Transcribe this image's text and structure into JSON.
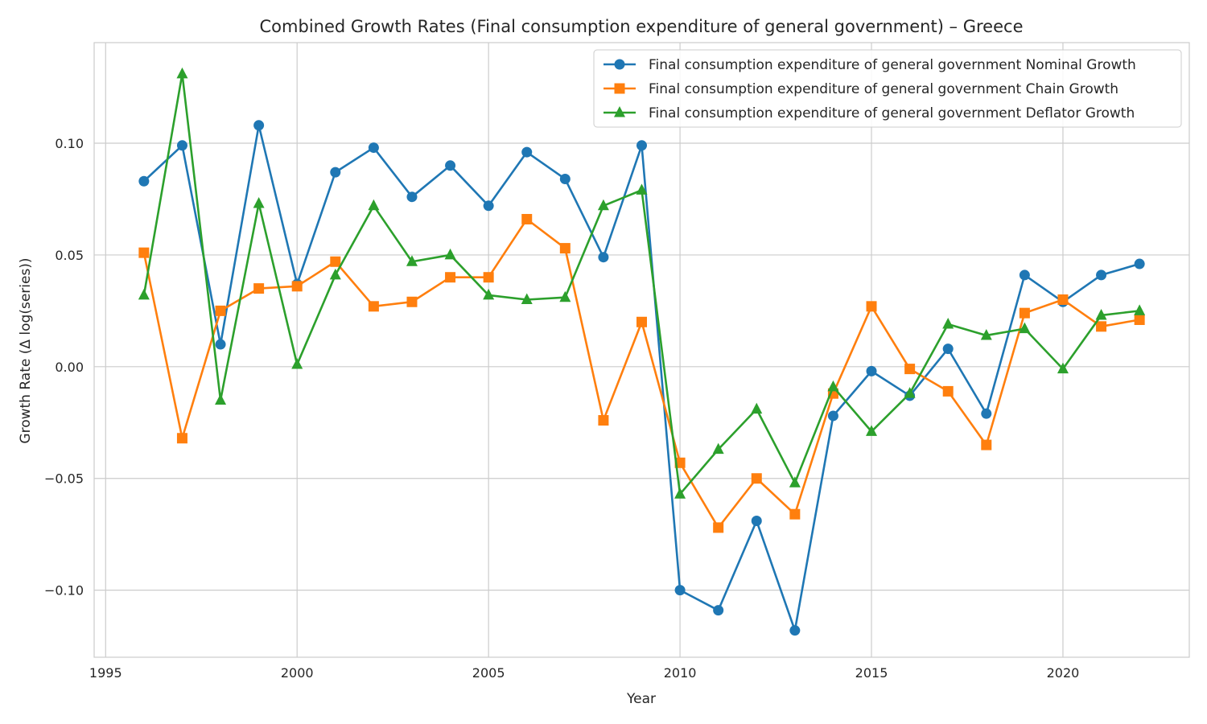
{
  "chart_data": {
    "type": "line",
    "title": "Combined Growth Rates (Final consumption expenditure of general government) – Greece",
    "xlabel": "Year",
    "ylabel": "Growth Rate (Δ log(series))",
    "xlim": [
      1994.7,
      2023.3
    ],
    "ylim": [
      -0.13,
      0.145
    ],
    "xticks": [
      1995,
      2000,
      2005,
      2010,
      2015,
      2020
    ],
    "yticks": [
      -0.1,
      -0.05,
      0.0,
      0.05,
      0.1
    ],
    "ytick_labels": [
      "−0.10",
      "−0.05",
      "0.00",
      "0.05",
      "0.10"
    ],
    "grid": true,
    "legend_position": "top-right",
    "x": [
      1996,
      1997,
      1998,
      1999,
      2000,
      2001,
      2002,
      2003,
      2004,
      2005,
      2006,
      2007,
      2008,
      2009,
      2010,
      2011,
      2012,
      2013,
      2014,
      2015,
      2016,
      2017,
      2018,
      2019,
      2020,
      2021,
      2022
    ],
    "series": [
      {
        "name": "Final consumption expenditure of general government Nominal Growth",
        "color": "#1f77b4",
        "marker": "circle",
        "values": [
          0.083,
          0.099,
          0.01,
          0.108,
          0.037,
          0.087,
          0.098,
          0.076,
          0.09,
          0.072,
          0.096,
          0.084,
          0.049,
          0.099,
          -0.1,
          -0.109,
          -0.069,
          -0.118,
          -0.022,
          -0.002,
          -0.013,
          0.008,
          -0.021,
          0.041,
          0.029,
          0.041,
          0.046
        ]
      },
      {
        "name": "Final consumption expenditure of general government Chain Growth",
        "color": "#ff7f0e",
        "marker": "square",
        "values": [
          0.051,
          -0.032,
          0.025,
          0.035,
          0.036,
          0.047,
          0.027,
          0.029,
          0.04,
          0.04,
          0.066,
          0.053,
          -0.024,
          0.02,
          -0.043,
          -0.072,
          -0.05,
          -0.066,
          -0.012,
          0.027,
          -0.001,
          -0.011,
          -0.035,
          0.024,
          0.03,
          0.018,
          0.021
        ]
      },
      {
        "name": "Final consumption expenditure of general government Deflator Growth",
        "color": "#2ca02c",
        "marker": "triangle",
        "values": [
          0.032,
          0.131,
          -0.015,
          0.073,
          0.001,
          0.041,
          0.072,
          0.047,
          0.05,
          0.032,
          0.03,
          0.031,
          0.072,
          0.079,
          -0.057,
          -0.037,
          -0.019,
          -0.052,
          -0.009,
          -0.029,
          -0.012,
          0.019,
          0.014,
          0.017,
          -0.001,
          0.023,
          0.025
        ]
      }
    ]
  }
}
